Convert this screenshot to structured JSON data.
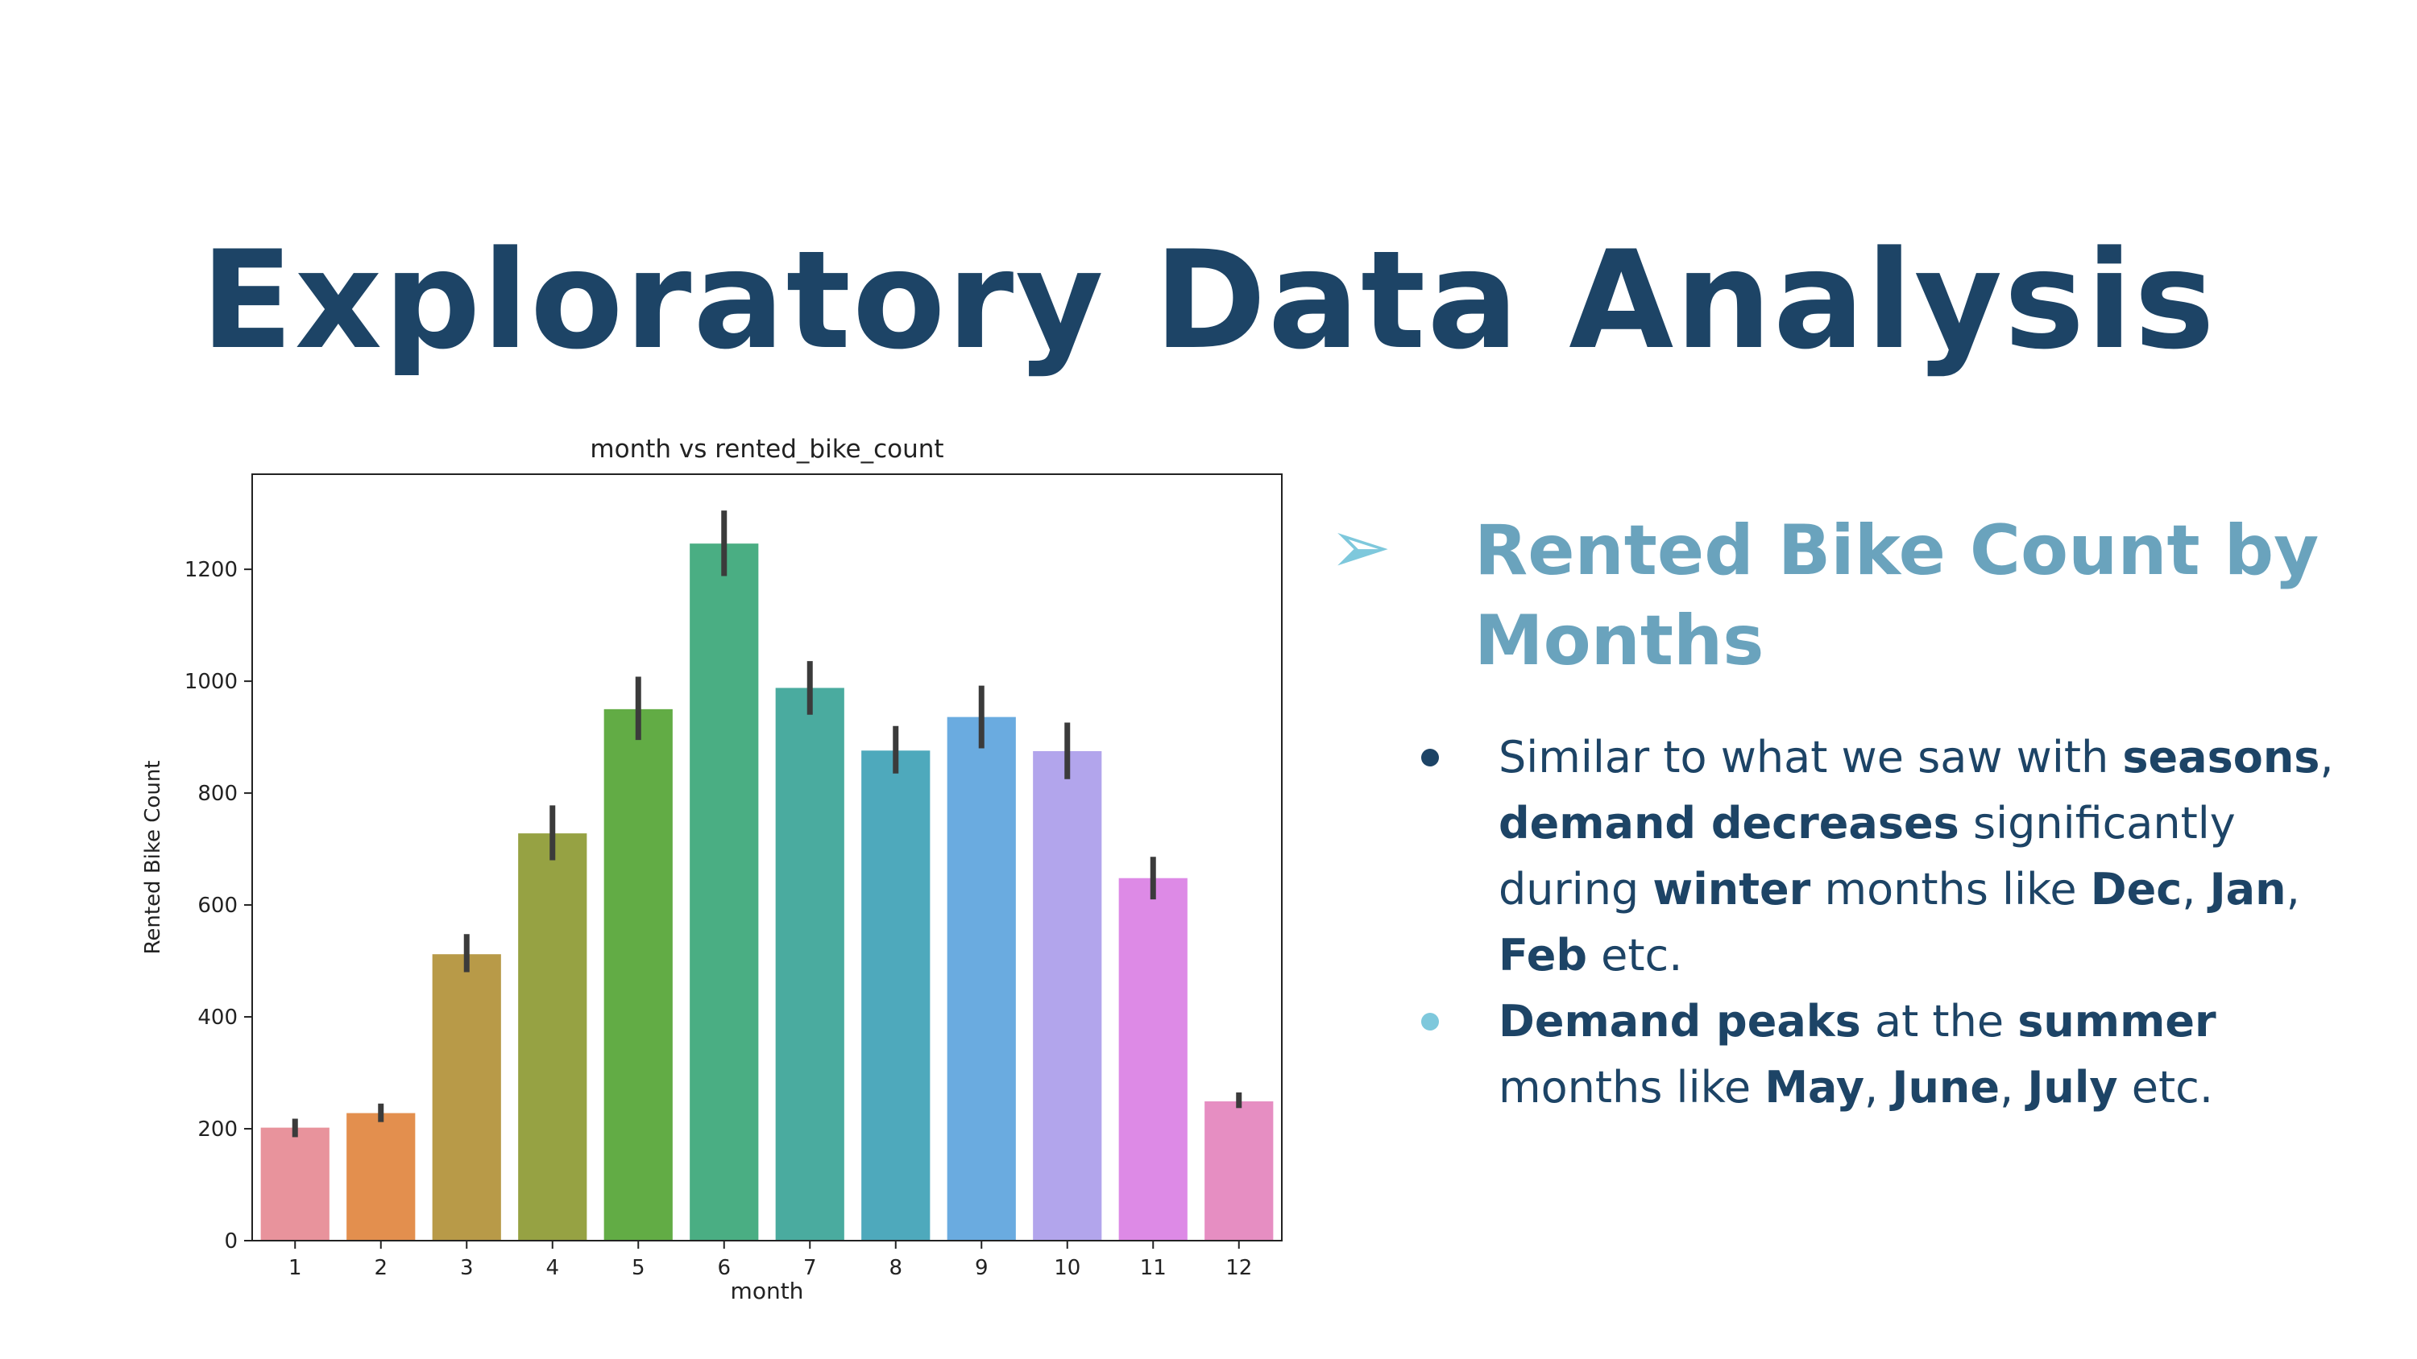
{
  "slide": {
    "title": "Exploratory Data Analysis",
    "section_arrow": "➢",
    "section_heading": "Rented Bike Count by Months",
    "bullets": [
      {
        "dot_color": "#1d4466",
        "parts": [
          {
            "t": "Similar to what we saw with ",
            "b": false
          },
          {
            "t": "seasons",
            "b": true
          },
          {
            "t": ", ",
            "b": false
          },
          {
            "t": "demand decreases",
            "b": true
          },
          {
            "t": " significantly during ",
            "b": false
          },
          {
            "t": "winter",
            "b": true
          },
          {
            "t": " months like ",
            "b": false
          },
          {
            "t": "Dec",
            "b": true
          },
          {
            "t": ", ",
            "b": false
          },
          {
            "t": "Jan",
            "b": true
          },
          {
            "t": ", ",
            "b": false
          },
          {
            "t": "Feb",
            "b": true
          },
          {
            "t": " etc.",
            "b": false
          }
        ]
      },
      {
        "dot_color": "#7ec8dc",
        "parts": [
          {
            "t": "Demand peaks",
            "b": true
          },
          {
            "t": " at the ",
            "b": false
          },
          {
            "t": "summer",
            "b": true
          },
          {
            "t": " months like ",
            "b": false
          },
          {
            "t": "May",
            "b": true
          },
          {
            "t": ", ",
            "b": false
          },
          {
            "t": "June",
            "b": true
          },
          {
            "t": ", ",
            "b": false
          },
          {
            "t": "July",
            "b": true
          },
          {
            "t": " etc.",
            "b": false
          }
        ]
      }
    ]
  },
  "chart_data": {
    "type": "bar",
    "title": "month vs rented_bike_count",
    "xlabel": "month",
    "ylabel": "Rented Bike Count",
    "categories": [
      "1",
      "2",
      "3",
      "4",
      "5",
      "6",
      "7",
      "8",
      "9",
      "10",
      "11",
      "12"
    ],
    "values": [
      202,
      228,
      512,
      728,
      950,
      1246,
      988,
      876,
      936,
      875,
      648,
      249
    ],
    "error_low": [
      185,
      212,
      480,
      680,
      895,
      1188,
      940,
      835,
      880,
      825,
      610,
      237
    ],
    "error_high": [
      218,
      245,
      548,
      778,
      1008,
      1305,
      1036,
      920,
      992,
      926,
      686,
      265
    ],
    "bar_colors": [
      "#e8939c",
      "#e38f4e",
      "#b89a48",
      "#96a243",
      "#62ac45",
      "#4aae83",
      "#4aab9f",
      "#4ea9bc",
      "#6aabe0",
      "#b2a5ec",
      "#dd8ae6",
      "#e68ec2"
    ],
    "yticks": [
      0,
      200,
      400,
      600,
      800,
      1000,
      1200
    ],
    "ylim": [
      0,
      1370
    ],
    "grid": false,
    "legend": "none"
  }
}
